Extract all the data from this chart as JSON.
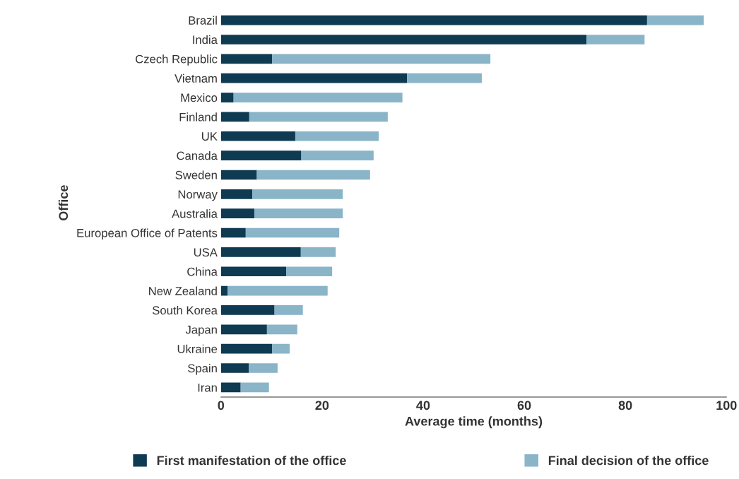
{
  "chart_data": {
    "type": "bar",
    "orientation": "horizontal",
    "stacked": true,
    "xlabel": "Average time (months)",
    "ylabel": "Office",
    "categories": [
      "Brazil",
      "India",
      "Czech Republic",
      "Vietnam",
      "Mexico",
      "Finland",
      "UK",
      "Canada",
      "Sweden",
      "Norway",
      "Australia",
      "European Office of Patents",
      "USA",
      "China",
      "New Zealand",
      "South Korea",
      "Japan",
      "Ukraine",
      "Spain",
      "Iran"
    ],
    "series": [
      {
        "name": "First manifestation of the office",
        "color": "#0e3a52",
        "values": [
          84.3,
          72.3,
          10.1,
          36.8,
          2.5,
          5.6,
          14.7,
          15.9,
          7.1,
          6.2,
          6.6,
          4.9,
          15.8,
          12.9,
          1.3,
          10.6,
          9.1,
          10.1,
          5.5,
          3.9
        ]
      },
      {
        "name": "Final decision of the office",
        "color": "#8ab4c8",
        "values": [
          11.2,
          11.5,
          43.2,
          14.8,
          33.4,
          27.4,
          16.5,
          14.3,
          22.4,
          17.9,
          17.5,
          18.5,
          6.9,
          9.1,
          19.8,
          5.6,
          6.0,
          3.5,
          5.7,
          5.6
        ]
      }
    ],
    "xlim": [
      0,
      100
    ],
    "xticks": [
      0,
      20,
      40,
      60,
      80,
      100
    ],
    "grid": false,
    "legend": "bottom"
  }
}
